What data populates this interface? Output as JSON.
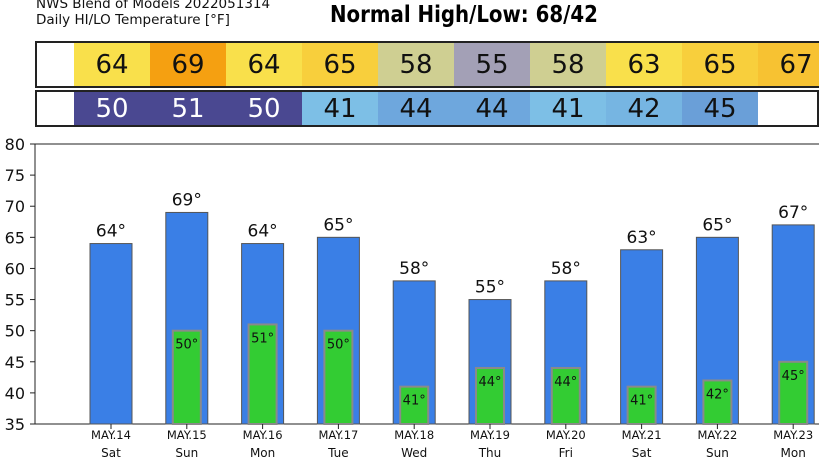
{
  "header": {
    "line1": "NWS Blend of Models 2022051314",
    "line2": "Daily HI/LO Temperature [°F]",
    "normal": "Normal High/Low: 68/42"
  },
  "high_strip": {
    "blank_first": true,
    "cells": [
      {
        "value": "64",
        "color": "#f9e04b"
      },
      {
        "value": "69",
        "color": "#f5a011"
      },
      {
        "value": "64",
        "color": "#f9e04b"
      },
      {
        "value": "65",
        "color": "#f8cf3c"
      },
      {
        "value": "58",
        "color": "#cfcf92"
      },
      {
        "value": "55",
        "color": "#a3a0b6"
      },
      {
        "value": "58",
        "color": "#cfcf92"
      },
      {
        "value": "63",
        "color": "#f9e04b"
      },
      {
        "value": "65",
        "color": "#f8cf3c"
      },
      {
        "value": "67",
        "color": "#f7c232"
      }
    ]
  },
  "low_strip": {
    "blank_first": true,
    "cells": [
      {
        "value": "50",
        "color": "#4a4891"
      },
      {
        "value": "51",
        "color": "#4a4891"
      },
      {
        "value": "50",
        "color": "#4a4891"
      },
      {
        "value": "41",
        "color": "#7dbfe6"
      },
      {
        "value": "44",
        "color": "#6ea7dd"
      },
      {
        "value": "44",
        "color": "#6ea7dd"
      },
      {
        "value": "41",
        "color": "#7dbfe6"
      },
      {
        "value": "42",
        "color": "#76b5e2"
      },
      {
        "value": "45",
        "color": "#6a9fd8"
      }
    ]
  },
  "chart_data": {
    "type": "bar",
    "categories": [
      "MAY.14",
      "MAY.15",
      "MAY.16",
      "MAY.17",
      "MAY.18",
      "MAY.19",
      "MAY.20",
      "MAY.21",
      "MAY.22",
      "MAY.23"
    ],
    "days": [
      "Sat",
      "Sun",
      "Mon",
      "Tue",
      "Wed",
      "Thu",
      "Fri",
      "Sat",
      "Sun",
      "Mon"
    ],
    "series": [
      {
        "values": [
          64,
          69,
          64,
          65,
          58,
          55,
          58,
          63,
          65,
          67
        ],
        "color": "#3a7fe6"
      },
      {
        "values": [
          null,
          50,
          51,
          50,
          41,
          44,
          44,
          41,
          42,
          45
        ],
        "color": "#33cc33"
      }
    ],
    "high_labels": [
      "64°",
      "69°",
      "64°",
      "65°",
      "58°",
      "55°",
      "58°",
      "63°",
      "65°",
      "67°"
    ],
    "low_labels": [
      "",
      "50°",
      "51°",
      "50°",
      "41°",
      "44°",
      "44°",
      "41°",
      "42°",
      "45°"
    ],
    "ylim": [
      35,
      80
    ],
    "yticks": [
      35,
      40,
      45,
      50,
      55,
      60,
      65,
      70,
      75,
      80
    ],
    "grid": false
  }
}
